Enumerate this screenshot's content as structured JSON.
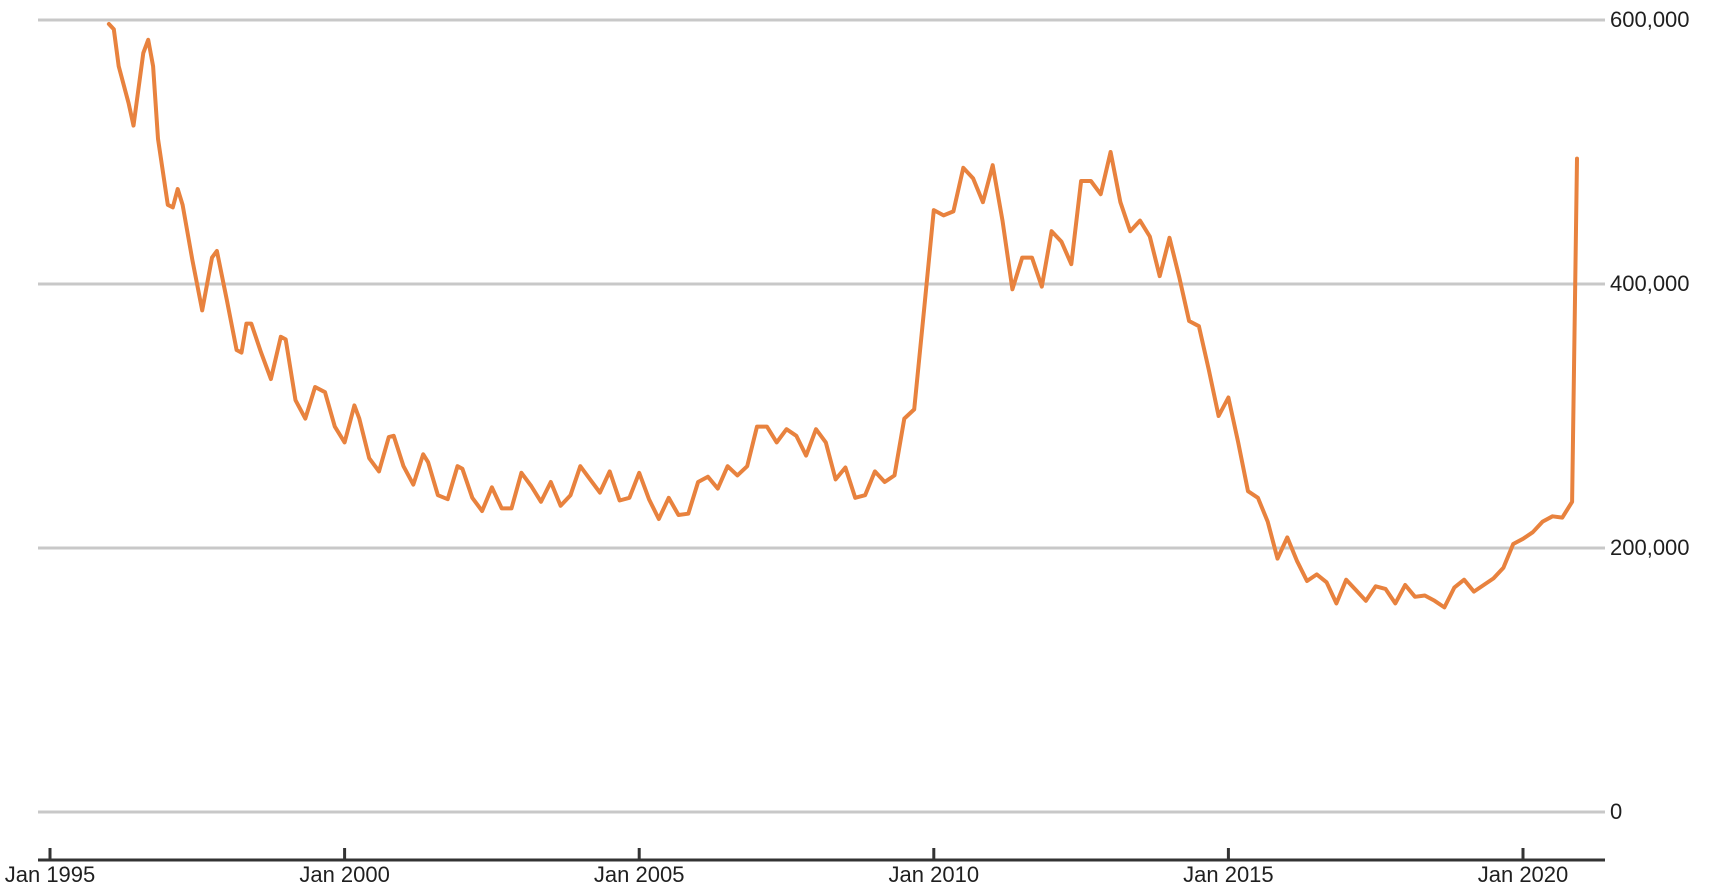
{
  "chart_data": {
    "type": "line",
    "title": "",
    "xlabel": "",
    "ylabel": "",
    "ylim": [
      0,
      600000
    ],
    "xlim": [
      "1995-01",
      "2020-12"
    ],
    "grid": true,
    "legend": "none",
    "y_ticks": [
      {
        "value": 0,
        "label": "0"
      },
      {
        "value": 200000,
        "label": "200,000"
      },
      {
        "value": 400000,
        "label": "400,000"
      },
      {
        "value": 600000,
        "label": "600,000"
      }
    ],
    "x_ticks": [
      {
        "value": "1995-01",
        "label": "Jan 1995"
      },
      {
        "value": "2000-01",
        "label": "Jan 2000"
      },
      {
        "value": "2005-01",
        "label": "Jan 2005"
      },
      {
        "value": "2010-01",
        "label": "Jan 2010"
      },
      {
        "value": "2015-01",
        "label": "Jan 2015"
      },
      {
        "value": "2020-01",
        "label": "Jan 2020"
      }
    ],
    "series": [
      {
        "color": "#e8823e",
        "points": [
          [
            "1996-01",
            597000
          ],
          [
            "1996-02",
            593000
          ],
          [
            "1996-03",
            565000
          ],
          [
            "1996-05",
            537000
          ],
          [
            "1996-06",
            520000
          ],
          [
            "1996-08",
            575000
          ],
          [
            "1996-09",
            585000
          ],
          [
            "1996-10",
            565000
          ],
          [
            "1996-11",
            510000
          ],
          [
            "1997-01",
            460000
          ],
          [
            "1997-02",
            458000
          ],
          [
            "1997-03",
            472000
          ],
          [
            "1997-04",
            460000
          ],
          [
            "1997-06",
            418000
          ],
          [
            "1997-08",
            380000
          ],
          [
            "1997-10",
            420000
          ],
          [
            "1997-11",
            425000
          ],
          [
            "1998-01",
            388000
          ],
          [
            "1998-03",
            350000
          ],
          [
            "1998-04",
            348000
          ],
          [
            "1998-05",
            370000
          ],
          [
            "1998-06",
            370000
          ],
          [
            "1998-08",
            348000
          ],
          [
            "1998-10",
            328000
          ],
          [
            "1998-12",
            360000
          ],
          [
            "1999-01",
            358000
          ],
          [
            "1999-03",
            312000
          ],
          [
            "1999-05",
            298000
          ],
          [
            "1999-07",
            322000
          ],
          [
            "1999-09",
            318000
          ],
          [
            "1999-11",
            292000
          ],
          [
            "2000-01",
            280000
          ],
          [
            "2000-03",
            308000
          ],
          [
            "2000-04",
            298000
          ],
          [
            "2000-06",
            268000
          ],
          [
            "2000-08",
            258000
          ],
          [
            "2000-10",
            284000
          ],
          [
            "2000-11",
            285000
          ],
          [
            "2001-01",
            262000
          ],
          [
            "2001-03",
            248000
          ],
          [
            "2001-05",
            271000
          ],
          [
            "2001-06",
            265000
          ],
          [
            "2001-08",
            240000
          ],
          [
            "2001-10",
            237000
          ],
          [
            "2001-12",
            262000
          ],
          [
            "2002-01",
            260000
          ],
          [
            "2002-03",
            238000
          ],
          [
            "2002-05",
            228000
          ],
          [
            "2002-07",
            246000
          ],
          [
            "2002-09",
            230000
          ],
          [
            "2002-11",
            230000
          ],
          [
            "2003-01",
            257000
          ],
          [
            "2003-03",
            247000
          ],
          [
            "2003-05",
            235000
          ],
          [
            "2003-07",
            250000
          ],
          [
            "2003-09",
            232000
          ],
          [
            "2003-11",
            240000
          ],
          [
            "2004-01",
            262000
          ],
          [
            "2004-03",
            252000
          ],
          [
            "2004-05",
            242000
          ],
          [
            "2004-07",
            258000
          ],
          [
            "2004-09",
            236000
          ],
          [
            "2004-11",
            238000
          ],
          [
            "2005-01",
            257000
          ],
          [
            "2005-03",
            237000
          ],
          [
            "2005-05",
            222000
          ],
          [
            "2005-07",
            238000
          ],
          [
            "2005-09",
            225000
          ],
          [
            "2005-11",
            226000
          ],
          [
            "2006-01",
            250000
          ],
          [
            "2006-03",
            254000
          ],
          [
            "2006-05",
            245000
          ],
          [
            "2006-07",
            262000
          ],
          [
            "2006-09",
            255000
          ],
          [
            "2006-11",
            262000
          ],
          [
            "2007-01",
            292000
          ],
          [
            "2007-03",
            292000
          ],
          [
            "2007-05",
            280000
          ],
          [
            "2007-07",
            290000
          ],
          [
            "2007-09",
            285000
          ],
          [
            "2007-11",
            270000
          ],
          [
            "2008-01",
            290000
          ],
          [
            "2008-03",
            280000
          ],
          [
            "2008-05",
            252000
          ],
          [
            "2008-07",
            261000
          ],
          [
            "2008-09",
            238000
          ],
          [
            "2008-11",
            240000
          ],
          [
            "2009-01",
            258000
          ],
          [
            "2009-03",
            250000
          ],
          [
            "2009-05",
            255000
          ],
          [
            "2009-07",
            298000
          ],
          [
            "2009-09",
            305000
          ],
          [
            "2009-11",
            380000
          ],
          [
            "2010-01",
            456000
          ],
          [
            "2010-03",
            452000
          ],
          [
            "2010-05",
            455000
          ],
          [
            "2010-07",
            488000
          ],
          [
            "2010-09",
            480000
          ],
          [
            "2010-11",
            462000
          ],
          [
            "2011-01",
            490000
          ],
          [
            "2011-03",
            448000
          ],
          [
            "2011-05",
            396000
          ],
          [
            "2011-07",
            420000
          ],
          [
            "2011-09",
            420000
          ],
          [
            "2011-11",
            398000
          ],
          [
            "2012-01",
            440000
          ],
          [
            "2012-03",
            432000
          ],
          [
            "2012-05",
            415000
          ],
          [
            "2012-07",
            478000
          ],
          [
            "2012-09",
            478000
          ],
          [
            "2012-11",
            468000
          ],
          [
            "2013-01",
            500000
          ],
          [
            "2013-03",
            462000
          ],
          [
            "2013-05",
            440000
          ],
          [
            "2013-07",
            448000
          ],
          [
            "2013-09",
            436000
          ],
          [
            "2013-11",
            406000
          ],
          [
            "2014-01",
            435000
          ],
          [
            "2014-03",
            405000
          ],
          [
            "2014-05",
            372000
          ],
          [
            "2014-07",
            368000
          ],
          [
            "2014-09",
            335000
          ],
          [
            "2014-11",
            300000
          ],
          [
            "2015-01",
            314000
          ],
          [
            "2015-03",
            280000
          ],
          [
            "2015-05",
            243000
          ],
          [
            "2015-07",
            238000
          ],
          [
            "2015-09",
            220000
          ],
          [
            "2015-11",
            192000
          ],
          [
            "2016-01",
            208000
          ],
          [
            "2016-03",
            190000
          ],
          [
            "2016-05",
            175000
          ],
          [
            "2016-07",
            180000
          ],
          [
            "2016-09",
            174000
          ],
          [
            "2016-11",
            158000
          ],
          [
            "2017-01",
            176000
          ],
          [
            "2017-03",
            168000
          ],
          [
            "2017-05",
            160000
          ],
          [
            "2017-07",
            171000
          ],
          [
            "2017-09",
            169000
          ],
          [
            "2017-11",
            158000
          ],
          [
            "2018-01",
            172000
          ],
          [
            "2018-03",
            163000
          ],
          [
            "2018-05",
            164000
          ],
          [
            "2018-07",
            160000
          ],
          [
            "2018-09",
            155000
          ],
          [
            "2018-11",
            170000
          ],
          [
            "2019-01",
            176000
          ],
          [
            "2019-03",
            167000
          ],
          [
            "2019-05",
            172000
          ],
          [
            "2019-07",
            177000
          ],
          [
            "2019-09",
            185000
          ],
          [
            "2019-11",
            203000
          ],
          [
            "2020-01",
            207000
          ],
          [
            "2020-03",
            212000
          ],
          [
            "2020-05",
            220000
          ],
          [
            "2020-07",
            224000
          ],
          [
            "2020-09",
            223000
          ],
          [
            "2020-11",
            235000
          ],
          [
            "2020-12",
            495000
          ]
        ]
      }
    ]
  }
}
